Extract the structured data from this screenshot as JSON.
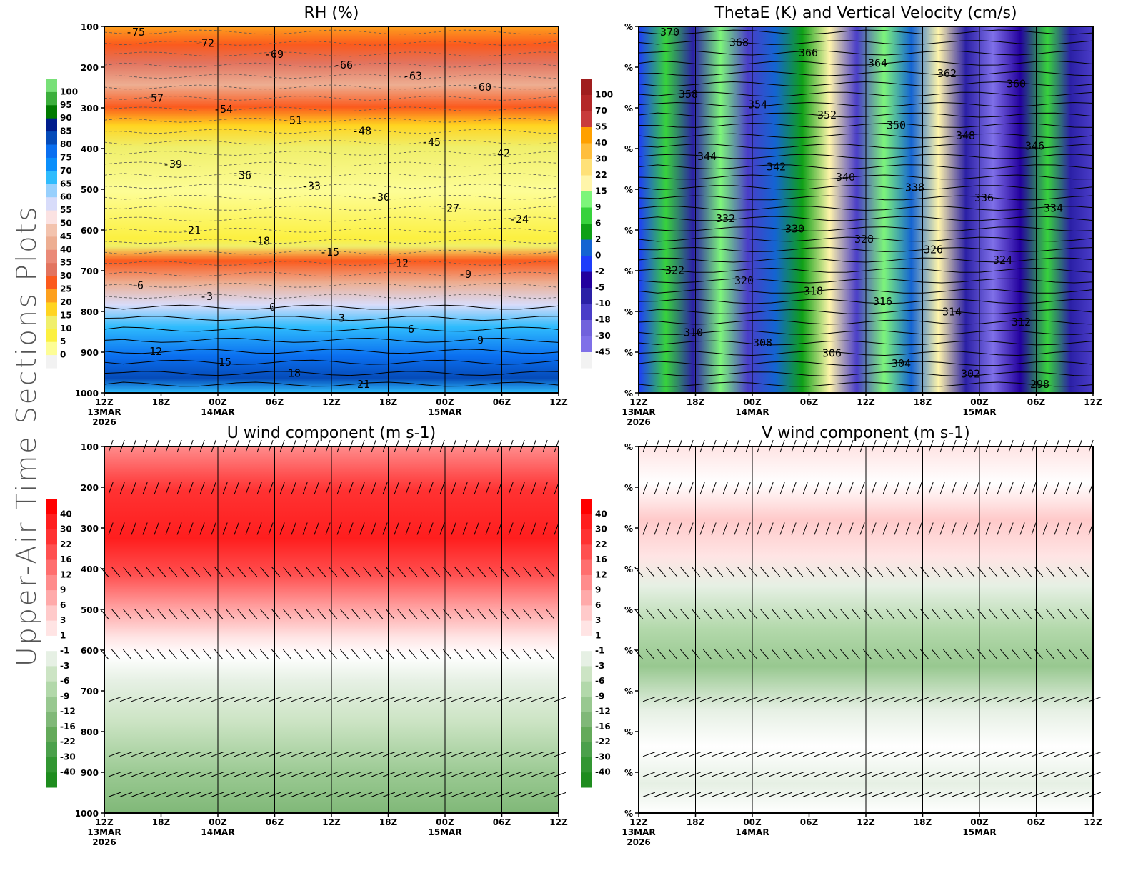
{
  "page": {
    "title": "Upper-Air Time Sections Plots"
  },
  "chart_data": [
    {
      "id": "rh",
      "type": "heatmap",
      "title": "RH (%)",
      "xlabel": "",
      "ylabel": "",
      "ylim": [
        1000,
        100
      ],
      "y_ticks": [
        "100",
        "200",
        "300",
        "400",
        "500",
        "600",
        "700",
        "800",
        "900",
        "1000"
      ],
      "x_ticks": [
        {
          "time": "12Z",
          "date": "13MAR",
          "year": "2026"
        },
        {
          "time": "18Z",
          "date": "",
          "year": ""
        },
        {
          "time": "00Z",
          "date": "14MAR",
          "year": ""
        },
        {
          "time": "06Z",
          "date": "",
          "year": ""
        },
        {
          "time": "12Z",
          "date": "",
          "year": ""
        },
        {
          "time": "18Z",
          "date": "",
          "year": ""
        },
        {
          "time": "00Z",
          "date": "15MAR",
          "year": ""
        },
        {
          "time": "06Z",
          "date": "",
          "year": ""
        },
        {
          "time": "12Z",
          "date": "",
          "year": ""
        }
      ],
      "colorbar": {
        "labels": [
          "0",
          "5",
          "10",
          "15",
          "20",
          "25",
          "30",
          "35",
          "40",
          "45",
          "50",
          "55",
          "60",
          "65",
          "70",
          "75",
          "80",
          "85",
          "90",
          "95",
          "100"
        ],
        "colors": [
          "#f2f2f2",
          "#fdfd96",
          "#fcf040",
          "#f0ef6b",
          "#ffd420",
          "#fda01e",
          "#fb5a1d",
          "#e2745f",
          "#ea8a78",
          "#edae92",
          "#f3c3ae",
          "#fbe2e2",
          "#d8dcfa",
          "#98d0fd",
          "#2fbcfd",
          "#0a8ffb",
          "#0a6ff0",
          "#054bb9",
          "#001d8c",
          "#007a00",
          "#3caf3c",
          "#78e078"
        ]
      },
      "contour_field": "Temperature (C)",
      "contour_labels": [
        "-75",
        "-72",
        "-69",
        "-66",
        "-63",
        "-60",
        "-57",
        "-54",
        "-51",
        "-48",
        "-45",
        "-42",
        "-39",
        "-36",
        "-33",
        "-30",
        "-27",
        "-24",
        "-21",
        "-18",
        "-15",
        "-12",
        "-9",
        "-6",
        "-3",
        "0",
        "3",
        "6",
        "9",
        "12",
        "15",
        "18",
        "21"
      ]
    },
    {
      "id": "thetae",
      "type": "heatmap",
      "title": "ThetaE (K) and Vertical Velocity (cm/s)",
      "xlabel": "",
      "ylabel": "",
      "y_ticks": [
        "%",
        "%",
        "%",
        "%",
        "%",
        "%",
        "%",
        "%",
        "%",
        "%"
      ],
      "x_ticks": [
        {
          "time": "12Z",
          "date": "13MAR",
          "year": "2026"
        },
        {
          "time": "18Z",
          "date": "",
          "year": ""
        },
        {
          "time": "00Z",
          "date": "14MAR",
          "year": ""
        },
        {
          "time": "06Z",
          "date": "",
          "year": ""
        },
        {
          "time": "12Z",
          "date": "",
          "year": ""
        },
        {
          "time": "18Z",
          "date": "",
          "year": ""
        },
        {
          "time": "00Z",
          "date": "15MAR",
          "year": ""
        },
        {
          "time": "06Z",
          "date": "",
          "year": ""
        },
        {
          "time": "12Z",
          "date": "",
          "year": ""
        }
      ],
      "colorbar": {
        "labels": [
          "-45",
          "-30",
          "-18",
          "-10",
          "-5",
          "-2",
          "0",
          "2",
          "6",
          "9",
          "15",
          "22",
          "30",
          "40",
          "55",
          "70",
          "100"
        ],
        "colors": [
          "#f2f2f2",
          "#7f70e8",
          "#7162dc",
          "#4a3dc8",
          "#2b20a6",
          "#23009e",
          "#1e3cfa",
          "#1464d2",
          "#0ea016",
          "#37d23c",
          "#7df57a",
          "#fff5aa",
          "#ffe178",
          "#ffbe3c",
          "#ffa000",
          "#c83c3c",
          "#b42828",
          "#a01e1e"
        ]
      },
      "contour_field": "ThetaE (K)",
      "contour_labels": [
        "370",
        "368",
        "366",
        "364",
        "362",
        "360",
        "358",
        "354",
        "352",
        "350",
        "348",
        "346",
        "344",
        "342",
        "340",
        "338",
        "336",
        "334",
        "332",
        "330",
        "328",
        "326",
        "324",
        "322",
        "320",
        "318",
        "316",
        "314",
        "312",
        "310",
        "308",
        "306",
        "304",
        "302",
        "298"
      ]
    },
    {
      "id": "uwind",
      "type": "heatmap",
      "title": "U wind component (m s-1)",
      "xlabel": "",
      "ylabel": "",
      "ylim": [
        1000,
        100
      ],
      "y_ticks": [
        "100",
        "200",
        "300",
        "400",
        "500",
        "600",
        "700",
        "800",
        "900",
        "1000"
      ],
      "x_ticks": [
        {
          "time": "12Z",
          "date": "13MAR",
          "year": "2026"
        },
        {
          "time": "18Z",
          "date": "",
          "year": ""
        },
        {
          "time": "00Z",
          "date": "14MAR",
          "year": ""
        },
        {
          "time": "06Z",
          "date": "",
          "year": ""
        },
        {
          "time": "12Z",
          "date": "",
          "year": ""
        },
        {
          "time": "18Z",
          "date": "",
          "year": ""
        },
        {
          "time": "00Z",
          "date": "15MAR",
          "year": ""
        },
        {
          "time": "06Z",
          "date": "",
          "year": ""
        },
        {
          "time": "12Z",
          "date": "",
          "year": ""
        }
      ],
      "colorbar": {
        "labels": [
          "-40",
          "-30",
          "-22",
          "-16",
          "-12",
          "-9",
          "-6",
          "-3",
          "-1",
          "1",
          "3",
          "6",
          "9",
          "12",
          "16",
          "22",
          "30",
          "40"
        ],
        "colors": [
          "#1e8c1e",
          "#329632",
          "#4ba04b",
          "#64aa5a",
          "#80b878",
          "#98c890",
          "#b2d8aa",
          "#cce4c4",
          "#e6f0e4",
          "#ffffff",
          "#ffe4e4",
          "#ffcaca",
          "#ffaaaa",
          "#ff8c8c",
          "#ff6e6e",
          "#ff5050",
          "#ff3232",
          "#ff1e1e",
          "#ff0000"
        ]
      },
      "barb_levels": [
        "100",
        "200",
        "300",
        "400",
        "500",
        "600",
        "700",
        "850",
        "900",
        "950"
      ]
    },
    {
      "id": "vwind",
      "type": "heatmap",
      "title": "V wind component (m s-1)",
      "xlabel": "",
      "ylabel": "",
      "y_ticks": [
        "%",
        "%",
        "%",
        "%",
        "%",
        "%",
        "%",
        "%",
        "%",
        "%"
      ],
      "x_ticks": [
        {
          "time": "12Z",
          "date": "13MAR",
          "year": "2026"
        },
        {
          "time": "18Z",
          "date": "",
          "year": ""
        },
        {
          "time": "00Z",
          "date": "14MAR",
          "year": ""
        },
        {
          "time": "06Z",
          "date": "",
          "year": ""
        },
        {
          "time": "12Z",
          "date": "",
          "year": ""
        },
        {
          "time": "18Z",
          "date": "",
          "year": ""
        },
        {
          "time": "00Z",
          "date": "15MAR",
          "year": ""
        },
        {
          "time": "06Z",
          "date": "",
          "year": ""
        },
        {
          "time": "12Z",
          "date": "",
          "year": ""
        }
      ],
      "colorbar": {
        "labels": [
          "-40",
          "-30",
          "-22",
          "-16",
          "-12",
          "-9",
          "-6",
          "-3",
          "-1",
          "1",
          "3",
          "6",
          "9",
          "12",
          "16",
          "22",
          "30",
          "40"
        ],
        "colors": [
          "#1e8c1e",
          "#329632",
          "#4ba04b",
          "#64aa5a",
          "#80b878",
          "#98c890",
          "#b2d8aa",
          "#cce4c4",
          "#e6f0e4",
          "#ffffff",
          "#ffe4e4",
          "#ffcaca",
          "#ffaaaa",
          "#ff8c8c",
          "#ff6e6e",
          "#ff5050",
          "#ff3232",
          "#ff1e1e",
          "#ff0000"
        ]
      }
    }
  ]
}
